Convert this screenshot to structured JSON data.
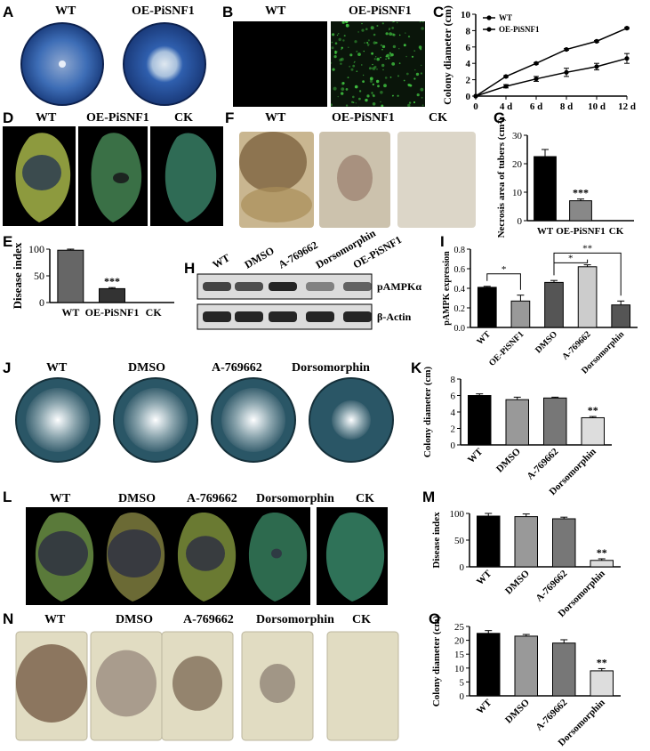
{
  "panels": {
    "A": {
      "letter": "A",
      "labels": [
        "WT",
        "OE-PiSNF1"
      ]
    },
    "B": {
      "letter": "B",
      "labels": [
        "WT",
        "OE-PiSNF1"
      ]
    },
    "C": {
      "letter": "C"
    },
    "D": {
      "letter": "D",
      "labels": [
        "WT",
        "OE-PiSNF1",
        "CK"
      ]
    },
    "E": {
      "letter": "E"
    },
    "F": {
      "letter": "F",
      "labels": [
        "WT",
        "OE-PiSNF1",
        "CK"
      ]
    },
    "G": {
      "letter": "G"
    },
    "H": {
      "letter": "H",
      "lanes": [
        "WT",
        "DMSO",
        "A-769662",
        "Dorsomorphin",
        "OE-PiSNF1"
      ],
      "bands": [
        "pAMPKα",
        "β-Actin"
      ]
    },
    "I": {
      "letter": "I"
    },
    "J": {
      "letter": "J",
      "labels": [
        "WT",
        "DMSO",
        "A-769662",
        "Dorsomorphin"
      ]
    },
    "K": {
      "letter": "K"
    },
    "L": {
      "letter": "L",
      "labels": [
        "WT",
        "DMSO",
        "A-769662",
        "Dorsomorphin",
        "CK"
      ]
    },
    "M": {
      "letter": "M"
    },
    "N": {
      "letter": "N",
      "labels": [
        "WT",
        "DMSO",
        "A-769662",
        "Dorsomorphin",
        "CK"
      ]
    },
    "O": {
      "letter": "O"
    }
  },
  "chart_data": [
    {
      "id": "C",
      "type": "line",
      "x": [
        "0",
        "4 d",
        "6 d",
        "8 d",
        "10 d",
        "12 d"
      ],
      "series": [
        {
          "name": "WT",
          "values": [
            0,
            2.4,
            4.0,
            5.7,
            6.7,
            8.3
          ]
        },
        {
          "name": "OE-PiSNF1",
          "values": [
            0,
            1.2,
            2.1,
            2.9,
            3.6,
            4.6
          ]
        }
      ],
      "errors": [
        [
          0,
          0.1,
          0.1,
          0.1,
          0.1,
          0.1
        ],
        [
          0,
          0.2,
          0.3,
          0.5,
          0.4,
          0.6
        ]
      ],
      "ylabel": "Colony diameter (cm)",
      "ylim": [
        0,
        10
      ],
      "yticks": [
        "0",
        "2",
        "4",
        "6",
        "8",
        "10"
      ],
      "legend": "top-left"
    },
    {
      "id": "E",
      "type": "bar",
      "categories": [
        "WT",
        "OE-PiSNF1",
        "CK"
      ],
      "values": [
        98,
        26,
        0
      ],
      "errors": [
        2,
        2,
        0
      ],
      "sig": [
        "",
        "***",
        ""
      ],
      "ylabel": "Disease index",
      "ylim": [
        0,
        100
      ],
      "yticks": [
        "0",
        "50",
        "100"
      ],
      "colors": [
        "#666666",
        "#333333",
        "#333333"
      ]
    },
    {
      "id": "G",
      "type": "bar",
      "categories": [
        "WT",
        "OE-PiSNF1",
        "CK"
      ],
      "values": [
        22.5,
        7,
        0
      ],
      "errors": [
        2.5,
        0.6,
        0
      ],
      "sig": [
        "",
        "***",
        ""
      ],
      "ylabel": "Necrosis area of tubers (cm²)",
      "ylim": [
        0,
        30
      ],
      "yticks": [
        "0",
        "10",
        "20",
        "30"
      ],
      "colors": [
        "#000000",
        "#888888",
        "#888888"
      ]
    },
    {
      "id": "I",
      "type": "bar",
      "categories": [
        "WT",
        "OE-PiSNF1",
        "DMSO",
        "A-769662",
        "Dorsomorphin"
      ],
      "values": [
        0.41,
        0.27,
        0.46,
        0.62,
        0.23
      ],
      "errors": [
        0.01,
        0.06,
        0.02,
        0.02,
        0.04
      ],
      "brackets": [
        {
          "from": 0,
          "to": 1,
          "label": "*"
        },
        {
          "from": 2,
          "to": 3,
          "label": "*"
        },
        {
          "from": 2,
          "to": 4,
          "label": "**"
        }
      ],
      "ylabel": "pAMPK expression",
      "ylim": [
        0,
        0.8
      ],
      "yticks": [
        "0.0",
        "0.2",
        "0.4",
        "0.6",
        "0.8"
      ],
      "colors": [
        "#000000",
        "#999999",
        "#555555",
        "#cccccc",
        "#555555"
      ]
    },
    {
      "id": "K",
      "type": "bar",
      "categories": [
        "WT",
        "DMSO",
        "A-769662",
        "Dorsomorphin"
      ],
      "values": [
        6.0,
        5.5,
        5.7,
        3.3
      ],
      "errors": [
        0.2,
        0.3,
        0.1,
        0.15
      ],
      "sig": [
        "",
        "",
        "",
        "**"
      ],
      "ylabel": "Colony diameter (cm)",
      "ylim": [
        0,
        8
      ],
      "yticks": [
        "0",
        "2",
        "4",
        "6",
        "8"
      ],
      "colors": [
        "#000000",
        "#999999",
        "#777777",
        "#dddddd"
      ]
    },
    {
      "id": "M",
      "type": "bar",
      "categories": [
        "WT",
        "DMSO",
        "A-769662",
        "Dorsomorphin"
      ],
      "values": [
        95,
        94,
        90,
        12
      ],
      "errors": [
        5,
        5,
        3,
        3
      ],
      "sig": [
        "",
        "",
        "",
        "**"
      ],
      "ylabel": "Disease index",
      "ylim": [
        0,
        100
      ],
      "yticks": [
        "0",
        "50",
        "100"
      ],
      "colors": [
        "#000000",
        "#999999",
        "#777777",
        "#dddddd"
      ]
    },
    {
      "id": "O",
      "type": "bar",
      "categories": [
        "WT",
        "DMSO",
        "A-769662",
        "Dorsomorphin"
      ],
      "values": [
        22.5,
        21.5,
        19,
        9
      ],
      "errors": [
        1,
        0.6,
        1.2,
        0.8
      ],
      "sig": [
        "",
        "",
        "",
        "**"
      ],
      "ylabel": "Colony diameter (cm)",
      "ylim": [
        0,
        25
      ],
      "yticks": [
        "0",
        "5",
        "10",
        "15",
        "20",
        "25"
      ],
      "colors": [
        "#000000",
        "#999999",
        "#777777",
        "#dddddd"
      ]
    }
  ],
  "colors": {
    "plate_dark": "#1f4f9a",
    "plate_light": "#4f7fc4",
    "fluor_bg": "#0a140a",
    "fluor_dot": "#3fbf3f",
    "leaf_green": "#2f6b3e",
    "leaf_yellow": "#b6b040",
    "lesion": "#2a2a33",
    "tuber": "#d8cdb3",
    "tuber_lesion": "#6b4a33"
  }
}
